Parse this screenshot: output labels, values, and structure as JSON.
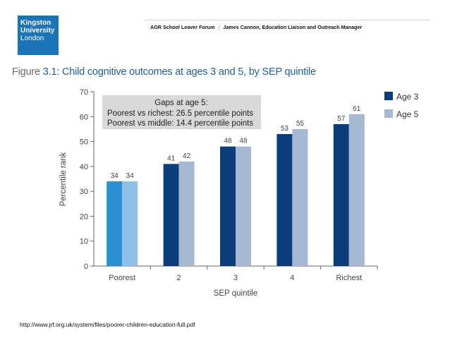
{
  "logo": {
    "line1": "Kingston",
    "line2": "University",
    "line3": "London"
  },
  "header": {
    "left": "AGR School Leaver Forum",
    "separator": "|",
    "right": "James Cannon, Education Liaison and Outreach Manager"
  },
  "figure": {
    "label": "Figure",
    "number": "3.1:",
    "title": " Child cognitive outcomes at ages 3 and 5, by SEP quintile"
  },
  "footer": {
    "url": "http://www.jrf.org.uk/system/files/poorer-children-education-full.pdf"
  },
  "colors": {
    "age3": "#0b3d7a",
    "age5": "#a7b8d4",
    "age3_poorest": "#2b8fd3",
    "age5_poorest": "#8fc1e8",
    "annotation_bg": "#d9d9d9",
    "axis": "#666666"
  },
  "chart_data": {
    "type": "bar",
    "categories": [
      "Poorest",
      "2",
      "3",
      "4",
      "Richest"
    ],
    "series": [
      {
        "name": "Age 3",
        "values": [
          34,
          41,
          48,
          53,
          57
        ]
      },
      {
        "name": "Age 5",
        "values": [
          34,
          42,
          48,
          55,
          61
        ]
      }
    ],
    "value_labels": [
      [
        "34",
        "41",
        "48",
        "53",
        "57"
      ],
      [
        "34",
        "42",
        "48",
        "55",
        "61"
      ]
    ],
    "xlabel": "SEP quintile",
    "ylabel": "Percentile rank",
    "ylim": [
      0,
      70
    ],
    "yticks": [
      0,
      10,
      20,
      30,
      40,
      50,
      60,
      70
    ],
    "ytick_labels": [
      "0",
      "10",
      "20",
      "30",
      "40",
      "50",
      "60",
      "70"
    ],
    "legend": [
      "Age 3",
      "Age 5"
    ],
    "legend_position": "right",
    "annotation": {
      "title": "Gaps at age 5:",
      "lines": [
        "Poorest vs richest: 26.5 percentile points",
        "Poorest vs middle: 14.4 percentile points"
      ]
    }
  }
}
